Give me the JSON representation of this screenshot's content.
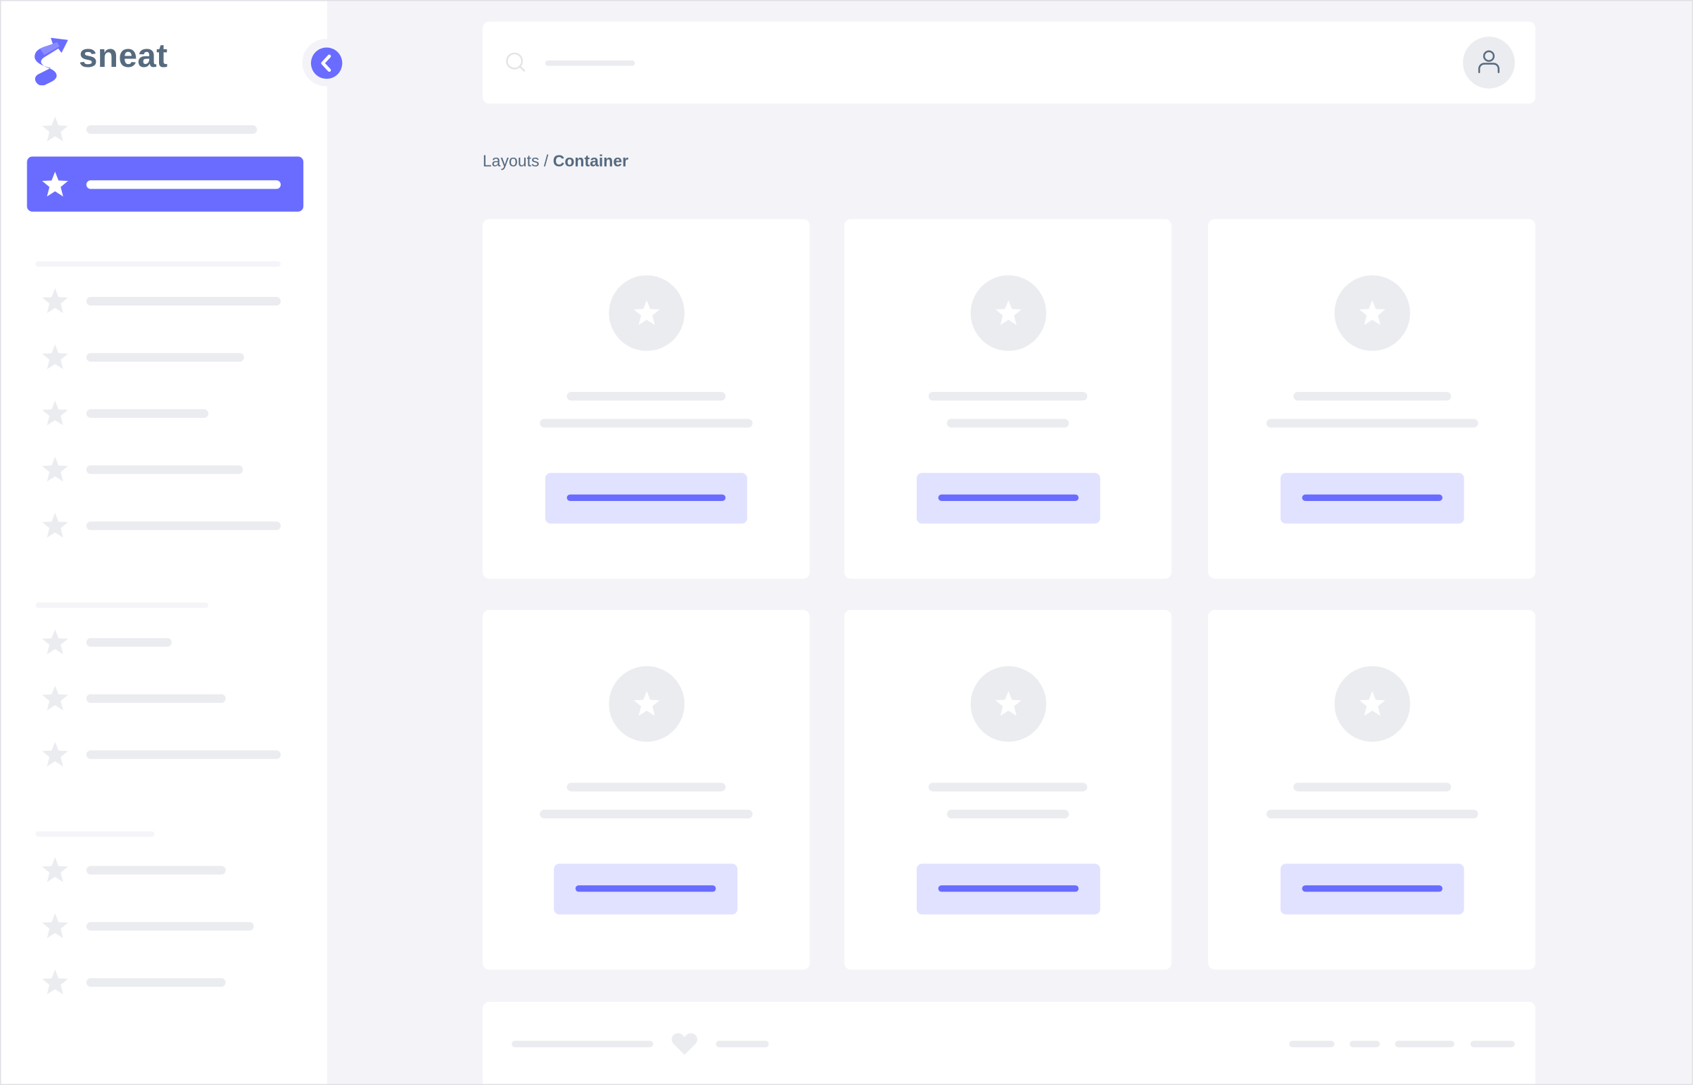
{
  "app": {
    "logo_text": "sneat"
  },
  "breadcrumb": {
    "parent": "Layouts",
    "separator": " / ",
    "current": "Container"
  },
  "colors": {
    "primary": "#696cff",
    "primary_light": "#e1e2ff",
    "text": "#566a7f",
    "background": "#f4f4f8",
    "skeleton": "#ebecf0"
  },
  "icons": {
    "logo": "sneat-logo-icon",
    "collapse": "chevron-left-icon",
    "nav": "star-icon",
    "search": "search-icon",
    "user": "user-icon",
    "footer": "heart-icon"
  },
  "sidebar": {
    "active_item_index": 1
  }
}
